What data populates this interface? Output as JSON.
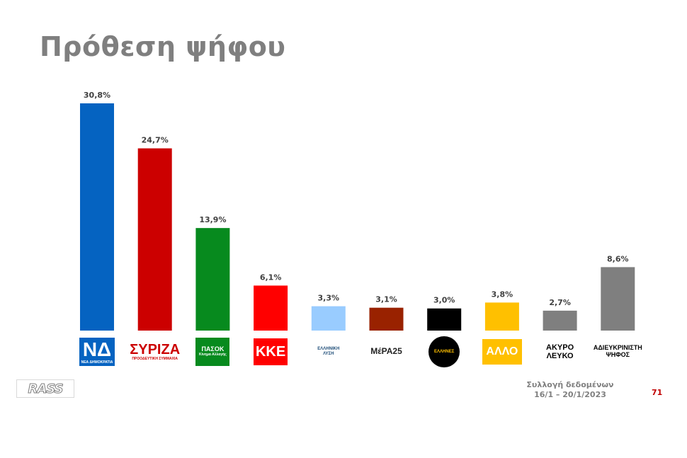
{
  "page": {
    "title": "Πρόθεση ψήφου",
    "source_line1": "Συλλογή δεδομένων",
    "source_line2": "16/1 – 20/1/2023",
    "page_number": "71",
    "brand": "RASS"
  },
  "chart_data": {
    "type": "bar",
    "title": "",
    "ylim": [
      0,
      30.8
    ],
    "grid": false,
    "legend": "none",
    "categories": [
      {
        "id": "nd",
        "logo_text": "ΝΔ",
        "logo_sub": "ΝΕΑ ΔΗΜΟΚΡΑΤΙΑ"
      },
      {
        "id": "syriza",
        "logo_text": "ΣΥΡΙΖΑ",
        "logo_sub": "ΠΡΟΟΔΕΥΤΙΚΗ ΣΥΜΜΑΧΙΑ"
      },
      {
        "id": "pasok",
        "logo_text": "ΠΑΣΟΚ",
        "logo_sub": "Κίνημα Αλλαγής"
      },
      {
        "id": "kke",
        "logo_text": "ΚΚΕ",
        "logo_sub": ""
      },
      {
        "id": "elliniki-lysi",
        "logo_text": "ΕΛΛΗΝΙΚΗ",
        "logo_sub": "ΛΥΣΗ"
      },
      {
        "id": "mera25",
        "logo_text": "ΜέΡΑ25",
        "logo_sub": ""
      },
      {
        "id": "ellines",
        "logo_text": "ΕΛΛΗΝΕΣ",
        "logo_sub": ""
      },
      {
        "id": "allo",
        "logo_text": "ΑΛΛΟ",
        "logo_sub": ""
      },
      {
        "id": "akyro",
        "logo_text": "ΑΚΥΡΟ",
        "logo_sub": "ΛΕΥΚΟ"
      },
      {
        "id": "adieukriniti",
        "logo_text": "ΑΔΙΕΥΚΡΙΝΙΣΤΗ",
        "logo_sub": "ΨΗΦΟΣ"
      }
    ],
    "values": [
      30.8,
      24.7,
      13.9,
      6.1,
      3.3,
      3.1,
      3.0,
      3.8,
      2.7,
      8.6
    ],
    "value_labels": [
      "30,8%",
      "24,7%",
      "13,9%",
      "6,1%",
      "3,3%",
      "3,1%",
      "3,0%",
      "3,8%",
      "2,7%",
      "8,6%"
    ],
    "colors": [
      "#0563c1",
      "#cc0000",
      "#078a1e",
      "#ff0000",
      "#99ccff",
      "#992200",
      "#000000",
      "#ffc000",
      "#7f7f7f",
      "#7f7f7f"
    ]
  }
}
